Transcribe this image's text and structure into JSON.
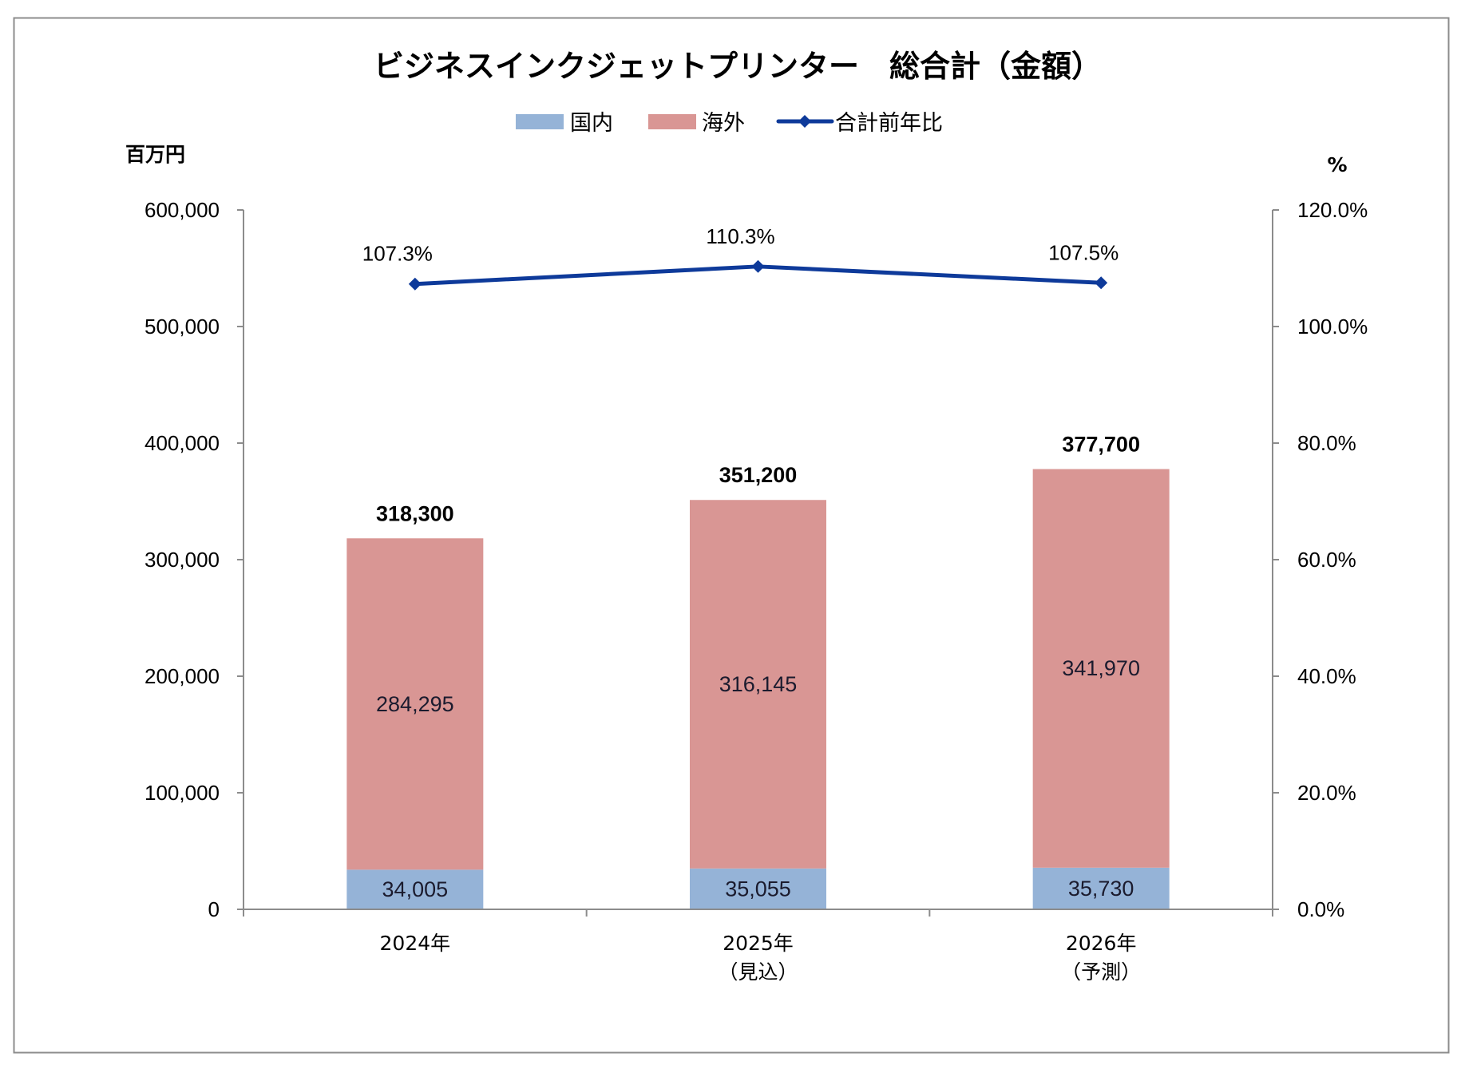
{
  "chart_data": {
    "type": "bar",
    "stacked": true,
    "title": "ビジネスインクジェットプリンター　総合計（金額）",
    "categories": [
      [
        "2024年"
      ],
      [
        "2025年",
        "（見込）"
      ],
      [
        "2026年",
        "（予測）"
      ]
    ],
    "y_left": {
      "label": "百万円",
      "range": [
        0,
        600000
      ],
      "ticks": [
        0,
        100000,
        200000,
        300000,
        400000,
        500000,
        600000
      ],
      "tick_labels": [
        "0",
        "100,000",
        "200,000",
        "300,000",
        "400,000",
        "500,000",
        "600,000"
      ]
    },
    "y_right": {
      "label": "%",
      "range": [
        0,
        120
      ],
      "ticks": [
        0,
        20,
        40,
        60,
        80,
        100,
        120
      ],
      "tick_labels": [
        "0.0%",
        "20.0%",
        "40.0%",
        "60.0%",
        "80.0%",
        "100.0%",
        "120.0%"
      ]
    },
    "series": [
      {
        "name": "国内",
        "kind": "bar",
        "axis": "left",
        "color": "#95B3D7",
        "values": [
          34005,
          35055,
          35730
        ],
        "labels": [
          "34,005",
          "35,055",
          "35,730"
        ]
      },
      {
        "name": "海外",
        "kind": "bar",
        "axis": "left",
        "color": "#D99694",
        "values": [
          284295,
          316145,
          341970
        ],
        "labels": [
          "284,295",
          "316,145",
          "341,970"
        ]
      },
      {
        "name": "合計前年比",
        "kind": "line",
        "axis": "right",
        "color": "#0E3A9A",
        "marker": "diamond",
        "values": [
          107.3,
          110.3,
          107.5
        ],
        "labels": [
          "107.3%",
          "110.3%",
          "107.5%"
        ]
      }
    ],
    "totals": {
      "values": [
        318300,
        351200,
        377700
      ],
      "labels": [
        "318,300",
        "351,200",
        "377,700"
      ]
    },
    "legend": {
      "position": "top",
      "items": [
        "国内",
        "海外",
        "合計前年比"
      ]
    },
    "grid": false,
    "axis_color": "#8C8C8C",
    "border_color": "#8C8C8C"
  }
}
